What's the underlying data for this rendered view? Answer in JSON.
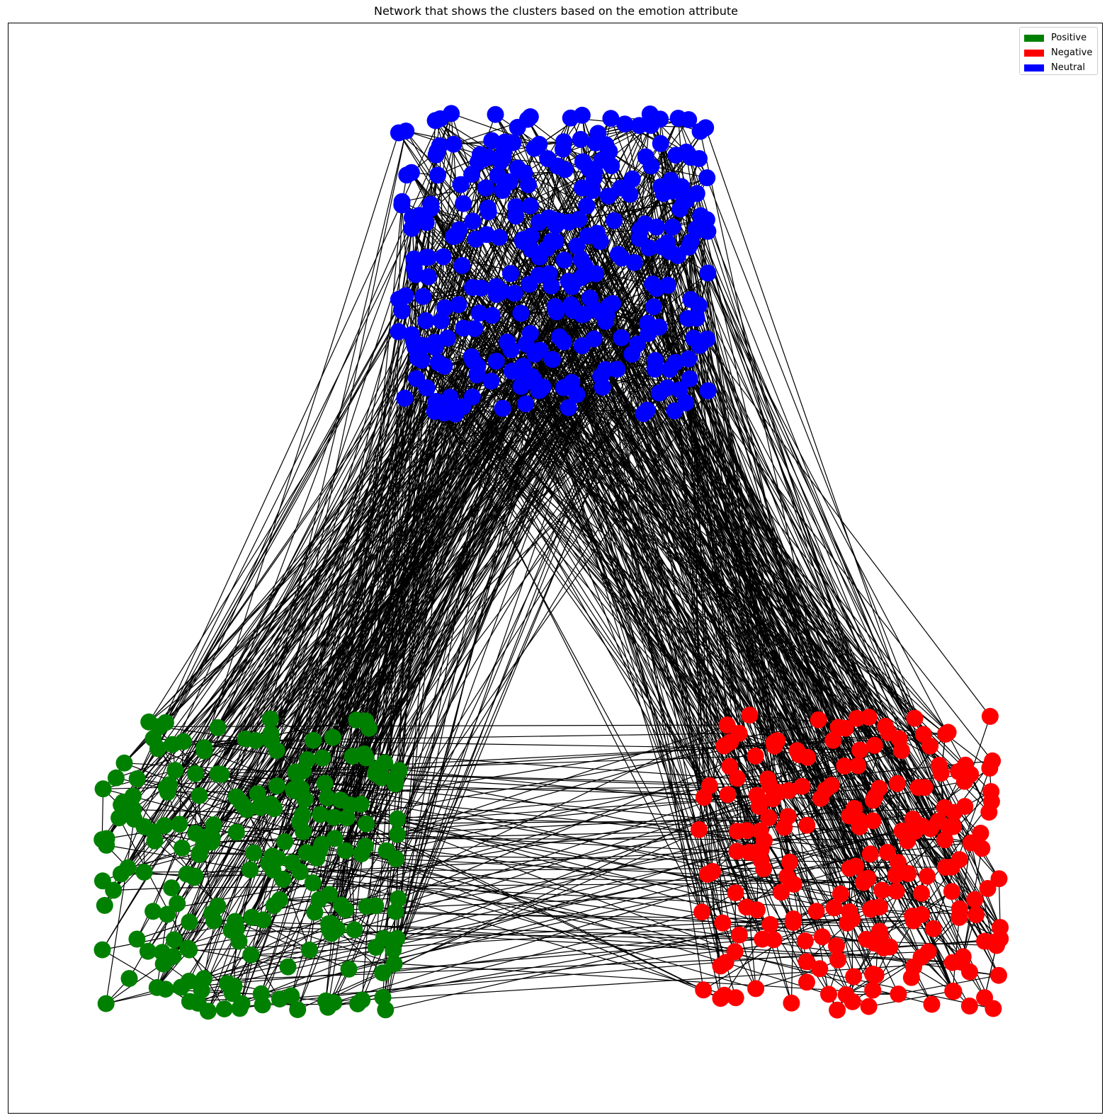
{
  "title": "Network that shows the clusters based on the emotion attribute",
  "legend": {
    "placement": "upper-right",
    "items": [
      {
        "label": "Positive",
        "color": "#008000"
      },
      {
        "label": "Negative",
        "color": "#ff0000"
      },
      {
        "label": "Neutral",
        "color": "#0000ff"
      }
    ]
  },
  "edge_color": "#000000"
}
